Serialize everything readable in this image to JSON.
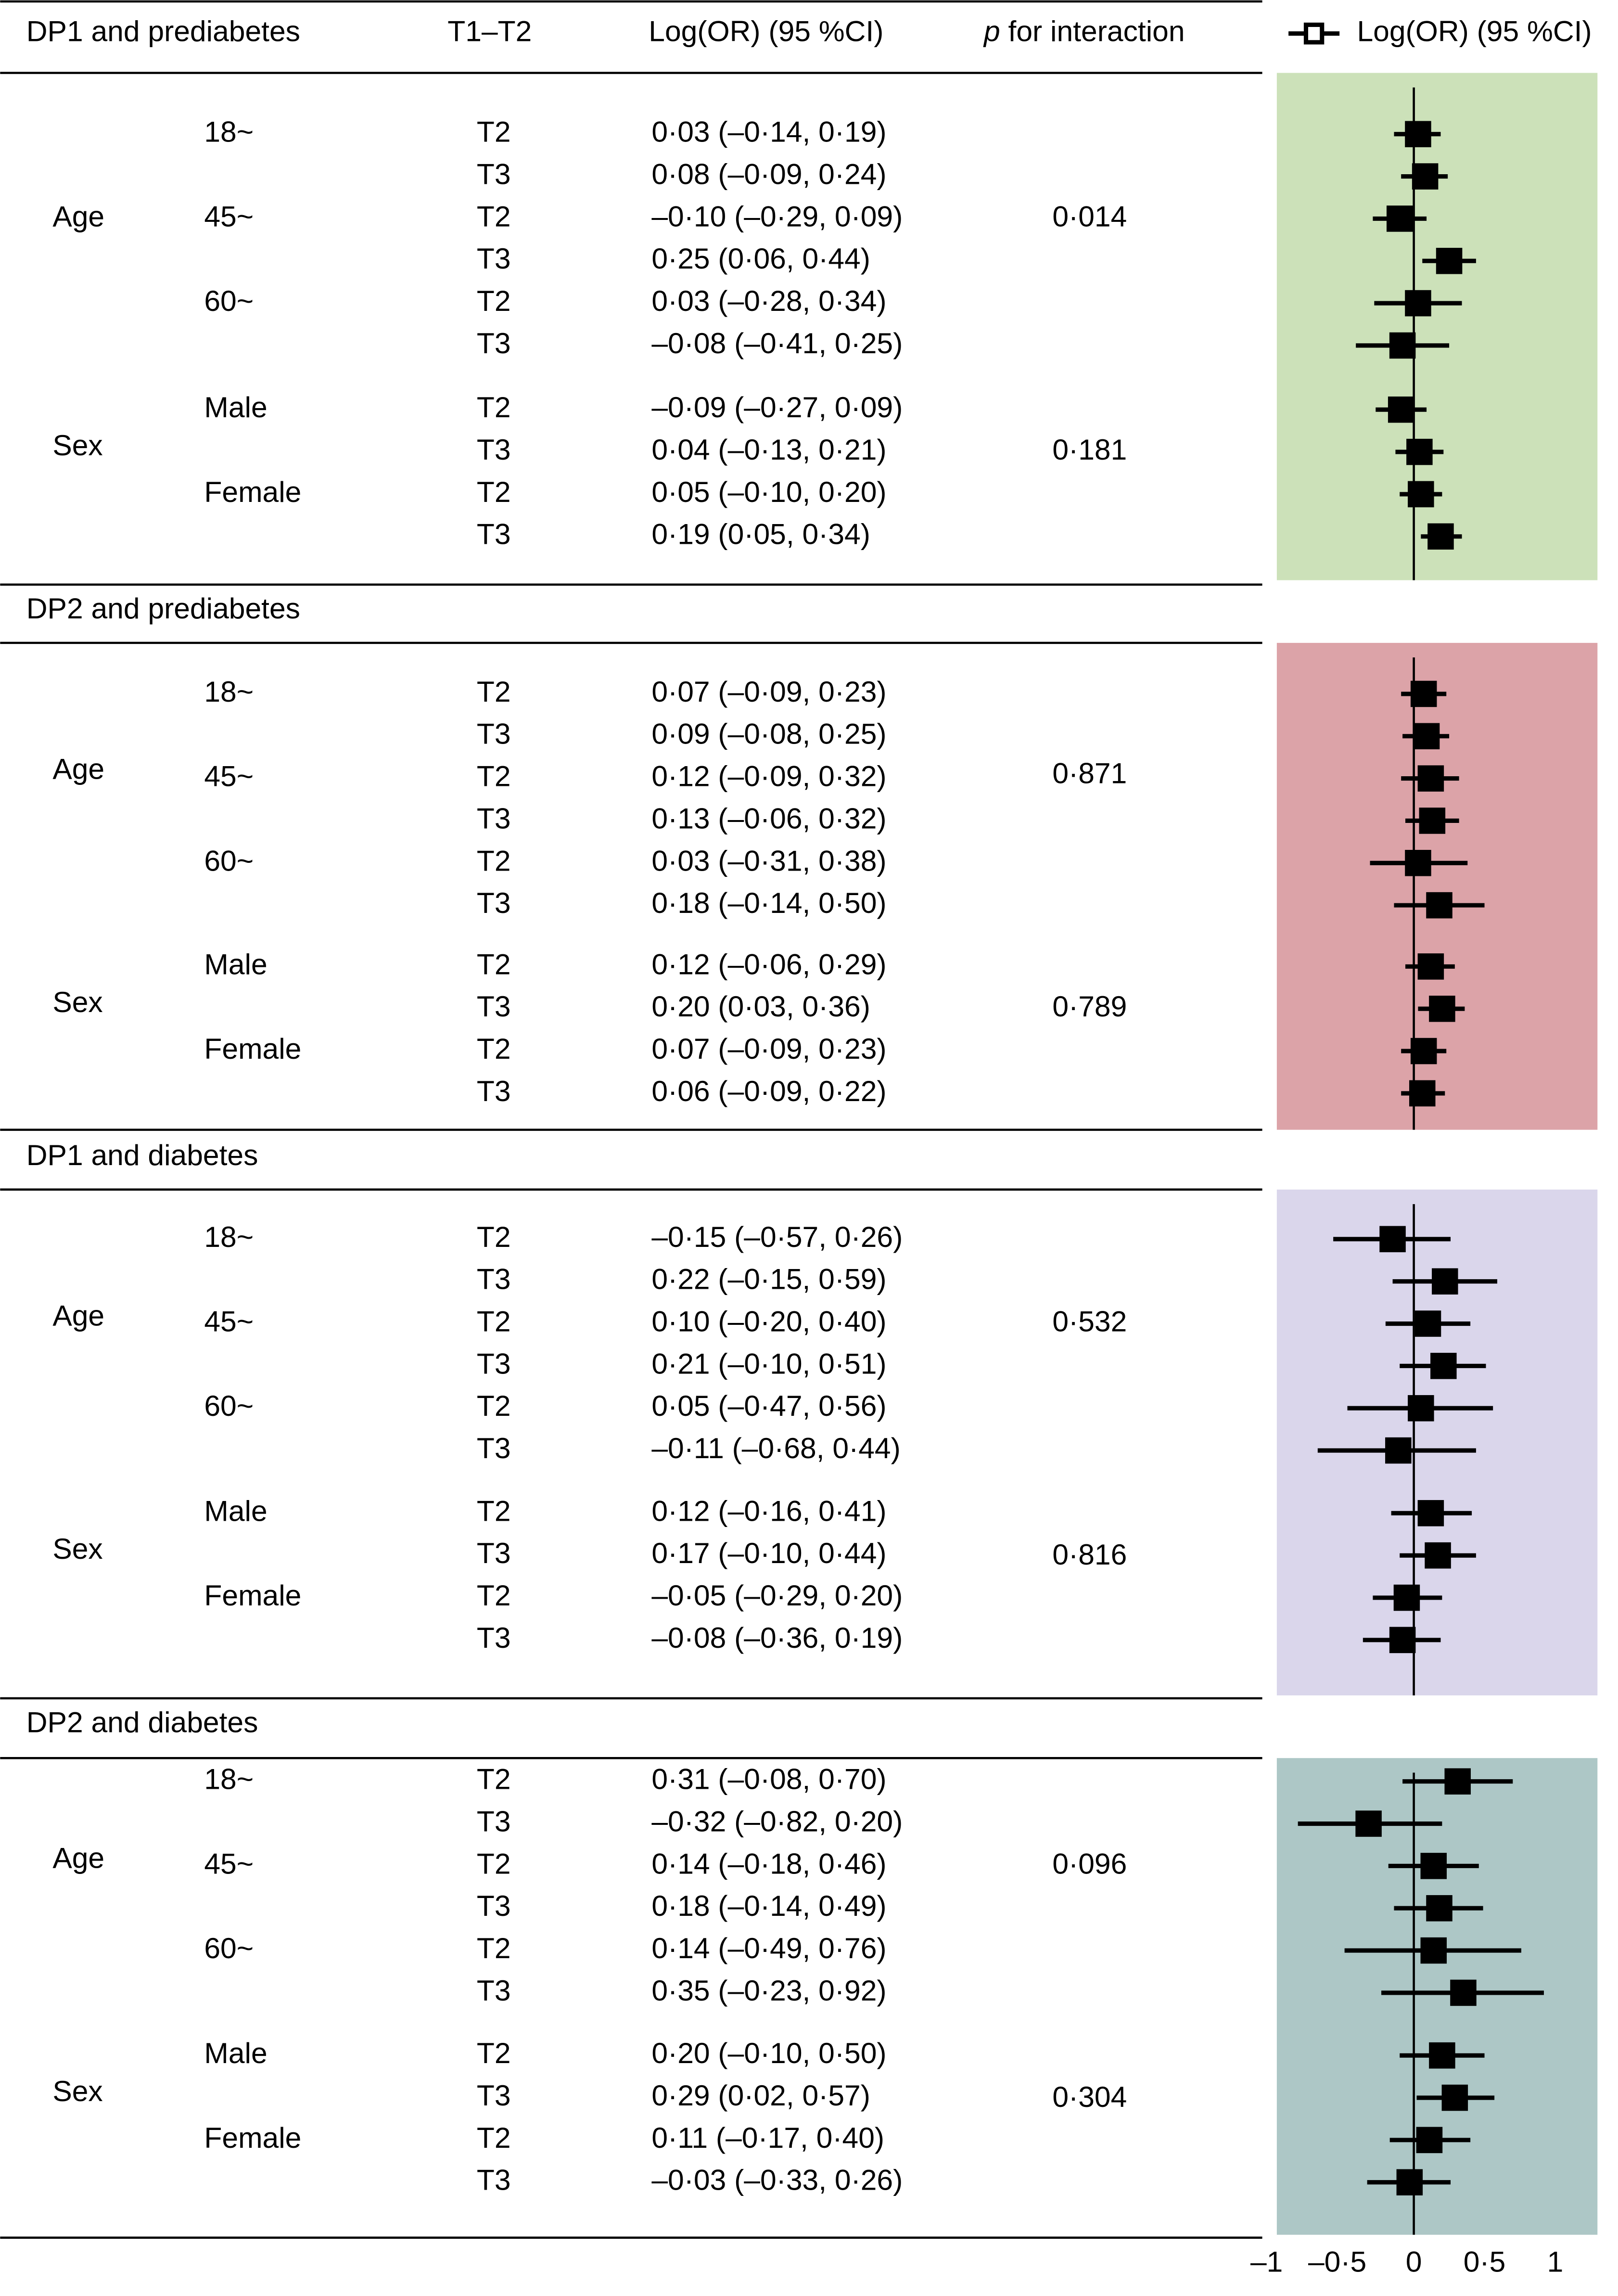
{
  "header": {
    "title": "DP1 and prediabetes",
    "tercile": "T1–T2",
    "ci": "Log(OR) (95 %CI)",
    "p_prefix": "p",
    "p_rest": " for interaction",
    "legend": "Log(OR) (95 %CI)"
  },
  "chart_data": {
    "type": "forest",
    "xlabel": "Log(OR)",
    "xticks": [
      "–1",
      "–0·5",
      "0",
      "0·5",
      "1"
    ],
    "xtick_values": [
      -1,
      -0.5,
      0,
      0.5,
      1
    ],
    "xlim": [
      -1,
      1.3
    ],
    "reference_line": 0,
    "sections": [
      {
        "title": "DP1 and prediabetes",
        "color": "#cce1b9",
        "groups": [
          "Age",
          "Sex"
        ],
        "p": [
          "0·014",
          "0·181"
        ],
        "rows": [
          {
            "sub": "18~",
            "t": "T2",
            "text": "0·03 (–0·14, 0·19)",
            "est": 0.03,
            "lo": -0.14,
            "hi": 0.19
          },
          {
            "sub": "",
            "t": "T3",
            "text": "0·08 (–0·09, 0·24)",
            "est": 0.08,
            "lo": -0.09,
            "hi": 0.24
          },
          {
            "sub": "45~",
            "t": "T2",
            "text": "–0·10 (–0·29, 0·09)",
            "est": -0.1,
            "lo": -0.29,
            "hi": 0.09
          },
          {
            "sub": "",
            "t": "T3",
            "text": "0·25 (0·06, 0·44)",
            "est": 0.25,
            "lo": 0.06,
            "hi": 0.44
          },
          {
            "sub": "60~",
            "t": "T2",
            "text": "0·03 (–0·28, 0·34)",
            "est": 0.03,
            "lo": -0.28,
            "hi": 0.34
          },
          {
            "sub": "",
            "t": "T3",
            "text": "–0·08 (–0·41, 0·25)",
            "est": -0.08,
            "lo": -0.41,
            "hi": 0.25
          },
          {
            "sub": "Male",
            "t": "T2",
            "text": "–0·09 (–0·27, 0·09)",
            "est": -0.09,
            "lo": -0.27,
            "hi": 0.09
          },
          {
            "sub": "",
            "t": "T3",
            "text": "0·04 (–0·13, 0·21)",
            "est": 0.04,
            "lo": -0.13,
            "hi": 0.21
          },
          {
            "sub": "Female",
            "t": "T2",
            "text": "0·05 (–0·10, 0·20)",
            "est": 0.05,
            "lo": -0.1,
            "hi": 0.2
          },
          {
            "sub": "",
            "t": "T3",
            "text": "0·19 (0·05, 0·34)",
            "est": 0.19,
            "lo": 0.05,
            "hi": 0.34
          }
        ]
      },
      {
        "title": "DP2 and prediabetes",
        "color": "#dca3a8",
        "groups": [
          "Age",
          "Sex"
        ],
        "p": [
          "0·871",
          "0·789"
        ],
        "rows": [
          {
            "sub": "18~",
            "t": "T2",
            "text": "0·07 (–0·09, 0·23)",
            "est": 0.07,
            "lo": -0.09,
            "hi": 0.23
          },
          {
            "sub": "",
            "t": "T3",
            "text": "0·09 (–0·08, 0·25)",
            "est": 0.09,
            "lo": -0.08,
            "hi": 0.25
          },
          {
            "sub": "45~",
            "t": "T2",
            "text": "0·12 (–0·09, 0·32)",
            "est": 0.12,
            "lo": -0.09,
            "hi": 0.32
          },
          {
            "sub": "",
            "t": "T3",
            "text": "0·13 (–0·06, 0·32)",
            "est": 0.13,
            "lo": -0.06,
            "hi": 0.32
          },
          {
            "sub": "60~",
            "t": "T2",
            "text": "0·03 (–0·31, 0·38)",
            "est": 0.03,
            "lo": -0.31,
            "hi": 0.38
          },
          {
            "sub": "",
            "t": "T3",
            "text": "0·18 (–0·14, 0·50)",
            "est": 0.18,
            "lo": -0.14,
            "hi": 0.5
          },
          {
            "sub": "Male",
            "t": "T2",
            "text": "0·12 (–0·06, 0·29)",
            "est": 0.12,
            "lo": -0.06,
            "hi": 0.29
          },
          {
            "sub": "",
            "t": "T3",
            "text": "0·20 (0·03, 0·36)",
            "est": 0.2,
            "lo": 0.03,
            "hi": 0.36
          },
          {
            "sub": "Female",
            "t": "T2",
            "text": "0·07 (–0·09, 0·23)",
            "est": 0.07,
            "lo": -0.09,
            "hi": 0.23
          },
          {
            "sub": "",
            "t": "T3",
            "text": "0·06 (–0·09, 0·22)",
            "est": 0.06,
            "lo": -0.09,
            "hi": 0.22
          }
        ]
      },
      {
        "title": "DP1 and diabetes",
        "color": "#dad6eb",
        "groups": [
          "Age",
          "Sex"
        ],
        "p": [
          "0·532",
          "0·816"
        ],
        "rows": [
          {
            "sub": "18~",
            "t": "T2",
            "text": "–0·15 (–0·57, 0·26)",
            "est": -0.15,
            "lo": -0.57,
            "hi": 0.26
          },
          {
            "sub": "",
            "t": "T3",
            "text": "0·22 (–0·15, 0·59)",
            "est": 0.22,
            "lo": -0.15,
            "hi": 0.59
          },
          {
            "sub": "45~",
            "t": "T2",
            "text": "0·10 (–0·20, 0·40)",
            "est": 0.1,
            "lo": -0.2,
            "hi": 0.4
          },
          {
            "sub": "",
            "t": "T3",
            "text": "0·21 (–0·10, 0·51)",
            "est": 0.21,
            "lo": -0.1,
            "hi": 0.51
          },
          {
            "sub": "60~",
            "t": "T2",
            "text": "0·05 (–0·47, 0·56)",
            "est": 0.05,
            "lo": -0.47,
            "hi": 0.56
          },
          {
            "sub": "",
            "t": "T3",
            "text": "–0·11 (–0·68, 0·44)",
            "est": -0.11,
            "lo": -0.68,
            "hi": 0.44
          },
          {
            "sub": "Male",
            "t": "T2",
            "text": "0·12 (–0·16, 0·41)",
            "est": 0.12,
            "lo": -0.16,
            "hi": 0.41
          },
          {
            "sub": "",
            "t": "T3",
            "text": "0·17 (–0·10, 0·44)",
            "est": 0.17,
            "lo": -0.1,
            "hi": 0.44
          },
          {
            "sub": "Female",
            "t": "T2",
            "text": "–0·05 (–0·29, 0·20)",
            "est": -0.05,
            "lo": -0.29,
            "hi": 0.2
          },
          {
            "sub": "",
            "t": "T3",
            "text": "–0·08 (–0·36, 0·19)",
            "est": -0.08,
            "lo": -0.36,
            "hi": 0.19
          }
        ]
      },
      {
        "title": "DP2 and diabetes",
        "color": "#adc7c6",
        "groups": [
          "Age",
          "Sex"
        ],
        "p": [
          "0·096",
          "0·304"
        ],
        "rows": [
          {
            "sub": "18~",
            "t": "T2",
            "text": "0·31 (–0·08, 0·70)",
            "est": 0.31,
            "lo": -0.08,
            "hi": 0.7
          },
          {
            "sub": "",
            "t": "T3",
            "text": "–0·32 (–0·82, 0·20)",
            "est": -0.32,
            "lo": -0.82,
            "hi": 0.2
          },
          {
            "sub": "45~",
            "t": "T2",
            "text": "0·14 (–0·18, 0·46)",
            "est": 0.14,
            "lo": -0.18,
            "hi": 0.46
          },
          {
            "sub": "",
            "t": "T3",
            "text": "0·18 (–0·14, 0·49)",
            "est": 0.18,
            "lo": -0.14,
            "hi": 0.49
          },
          {
            "sub": "60~",
            "t": "T2",
            "text": "0·14 (–0·49, 0·76)",
            "est": 0.14,
            "lo": -0.49,
            "hi": 0.76
          },
          {
            "sub": "",
            "t": "T3",
            "text": "0·35 (–0·23, 0·92)",
            "est": 0.35,
            "lo": -0.23,
            "hi": 0.92
          },
          {
            "sub": "Male",
            "t": "T2",
            "text": "0·20 (–0·10, 0·50)",
            "est": 0.2,
            "lo": -0.1,
            "hi": 0.5
          },
          {
            "sub": "",
            "t": "T3",
            "text": "0·29 (0·02, 0·57)",
            "est": 0.29,
            "lo": 0.02,
            "hi": 0.57
          },
          {
            "sub": "Female",
            "t": "T2",
            "text": "0·11 (–0·17, 0·40)",
            "est": 0.11,
            "lo": -0.17,
            "hi": 0.4
          },
          {
            "sub": "",
            "t": "T3",
            "text": "–0·03 (–0·33, 0·26)",
            "est": -0.03,
            "lo": -0.33,
            "hi": 0.26
          }
        ]
      }
    ]
  }
}
